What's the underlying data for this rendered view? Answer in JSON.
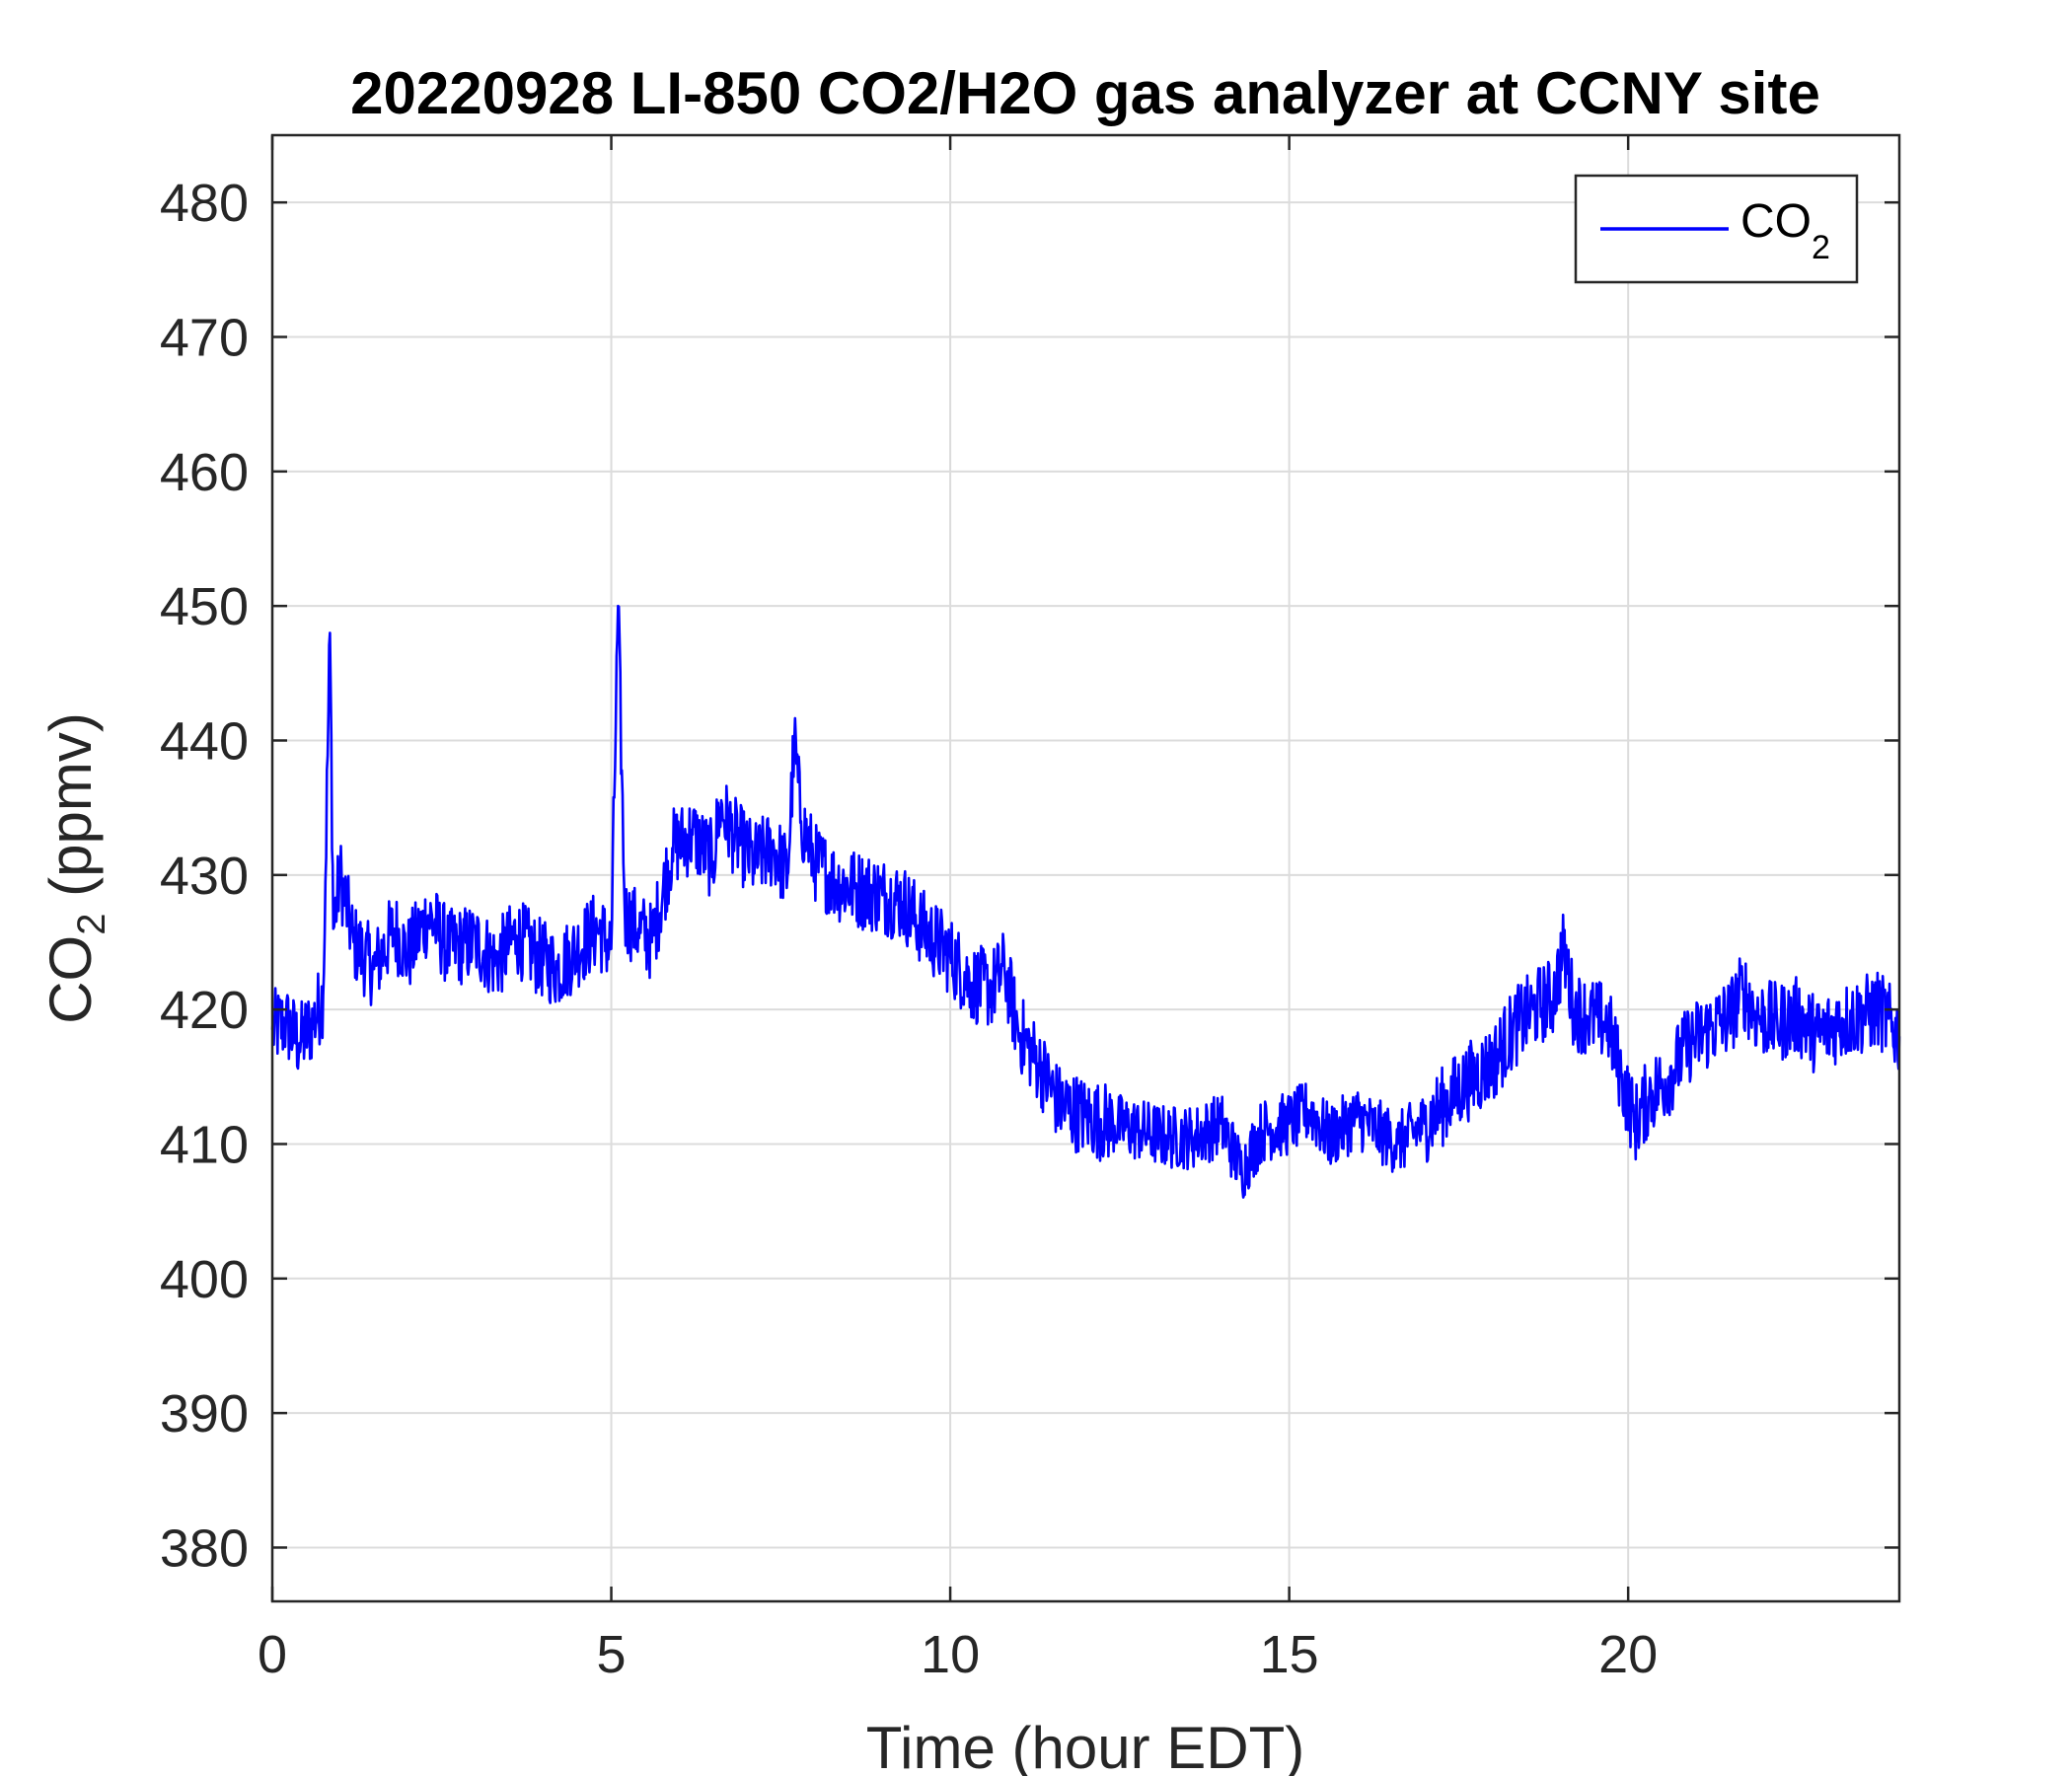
{
  "chart_data": {
    "type": "line",
    "title": "20220928 LI-850 CO2/H2O gas analyzer at CCNY site",
    "xlabel": "Time (hour EDT)",
    "ylabel_main": "CO",
    "ylabel_sub": "2",
    "ylabel_tail": " (ppmv)",
    "xlim": [
      0,
      24
    ],
    "ylim": [
      376,
      485
    ],
    "xticks": [
      0,
      5,
      10,
      15,
      20
    ],
    "yticks": [
      380,
      390,
      400,
      410,
      420,
      430,
      440,
      450,
      460,
      470,
      480
    ],
    "grid": true,
    "legend_position": "top-right",
    "colors": {
      "series": "#0000ff",
      "axes": "#262626",
      "grid": "#dcdcdc"
    },
    "series": [
      {
        "name_main": "CO",
        "name_sub": "2",
        "x": [
          0,
          0.2,
          0.4,
          0.6,
          0.75,
          0.85,
          0.9,
          1.0,
          1.2,
          1.5,
          1.8,
          2.0,
          2.3,
          2.6,
          3.0,
          3.3,
          3.6,
          3.9,
          4.2,
          4.5,
          4.8,
          5.0,
          5.1,
          5.2,
          5.4,
          5.6,
          5.9,
          6.2,
          6.5,
          6.6,
          6.8,
          7.1,
          7.4,
          7.6,
          7.7,
          7.8,
          8.0,
          8.3,
          8.6,
          9.0,
          9.3,
          9.6,
          10.0,
          10.3,
          10.6,
          10.8,
          11.0,
          11.3,
          11.6,
          12.0,
          12.4,
          12.8,
          13.2,
          13.6,
          14.0,
          14.3,
          14.6,
          15.0,
          15.3,
          15.6,
          16.0,
          16.3,
          16.6,
          17.0,
          17.3,
          17.6,
          18.0,
          18.3,
          18.6,
          18.9,
          19.05,
          19.2,
          19.4,
          19.7,
          19.9,
          20.1,
          20.3,
          20.6,
          20.9,
          21.2,
          21.5,
          21.7,
          21.9,
          22.2,
          22.5,
          22.8,
          23.1,
          23.4,
          23.7,
          24.0
        ],
        "y": [
          418.5,
          419.0,
          417.5,
          419.0,
          421.0,
          448.0,
          426.0,
          430.0,
          425.0,
          423.0,
          426.0,
          424.0,
          427.0,
          424.5,
          425.0,
          423.5,
          425.5,
          424.0,
          423.0,
          424.5,
          426.0,
          424.5,
          450.0,
          427.0,
          426.0,
          425.0,
          432.0,
          433.0,
          431.0,
          435.0,
          433.0,
          431.0,
          432.0,
          430.0,
          440.0,
          434.0,
          431.0,
          429.5,
          429.0,
          428.5,
          428.0,
          426.0,
          424.0,
          422.0,
          421.5,
          423.0,
          418.5,
          416.0,
          413.0,
          412.0,
          411.5,
          411.0,
          410.5,
          410.5,
          411.5,
          408.0,
          411.0,
          411.5,
          412.5,
          410.5,
          412.0,
          411.0,
          410.0,
          411.5,
          413.0,
          414.5,
          416.0,
          418.5,
          420.0,
          421.0,
          424.5,
          420.0,
          419.5,
          419.0,
          415.0,
          411.5,
          413.5,
          415.0,
          417.5,
          418.5,
          419.5,
          421.5,
          419.5,
          419.0,
          419.5,
          418.0,
          419.0,
          419.5,
          420.0,
          418.0
        ]
      }
    ]
  }
}
